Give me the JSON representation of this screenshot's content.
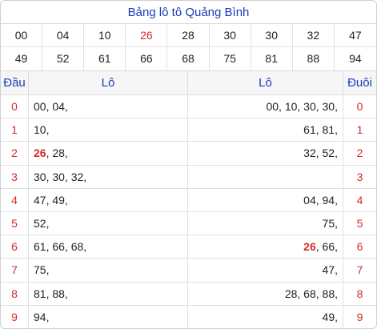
{
  "title": "Bảng lô tô Quảng Bình",
  "numbers": {
    "row1": [
      "00",
      "04",
      "10",
      "26",
      "28",
      "30",
      "30",
      "32",
      "47"
    ],
    "row2": [
      "49",
      "52",
      "61",
      "66",
      "68",
      "75",
      "81",
      "88",
      "94"
    ],
    "special": "26",
    "special_color": "#d32b2b"
  },
  "headers": {
    "dau": "Đầu",
    "lo_left": "Lô",
    "lo_right": "Lô",
    "duoi": "Đuôi"
  },
  "rows": [
    {
      "dau": "0",
      "left": "00, 04,",
      "right": "00, 10, 30, 30,",
      "duoi": "0"
    },
    {
      "dau": "1",
      "left": "10,",
      "right": "61, 81,",
      "duoi": "1"
    },
    {
      "dau": "2",
      "left_special": "26",
      "left_rest": ", 28,",
      "right": "32, 52,",
      "duoi": "2"
    },
    {
      "dau": "3",
      "left": "30, 30, 32,",
      "right": "",
      "duoi": "3"
    },
    {
      "dau": "4",
      "left": "47, 49,",
      "right": "04, 94,",
      "duoi": "4"
    },
    {
      "dau": "5",
      "left": "52,",
      "right": "75,",
      "duoi": "5"
    },
    {
      "dau": "6",
      "left": "61, 66, 68,",
      "right_special": "26",
      "right_rest": ", 66,",
      "duoi": "6"
    },
    {
      "dau": "7",
      "left": "75,",
      "right": "47,",
      "duoi": "7"
    },
    {
      "dau": "8",
      "left": "81, 88,",
      "right": "28, 68, 88,",
      "duoi": "8"
    },
    {
      "dau": "9",
      "left": "94,",
      "right": "49,",
      "duoi": "9"
    }
  ],
  "colors": {
    "title_blue": "#1a3db8",
    "digit_red": "#d32b2b"
  }
}
